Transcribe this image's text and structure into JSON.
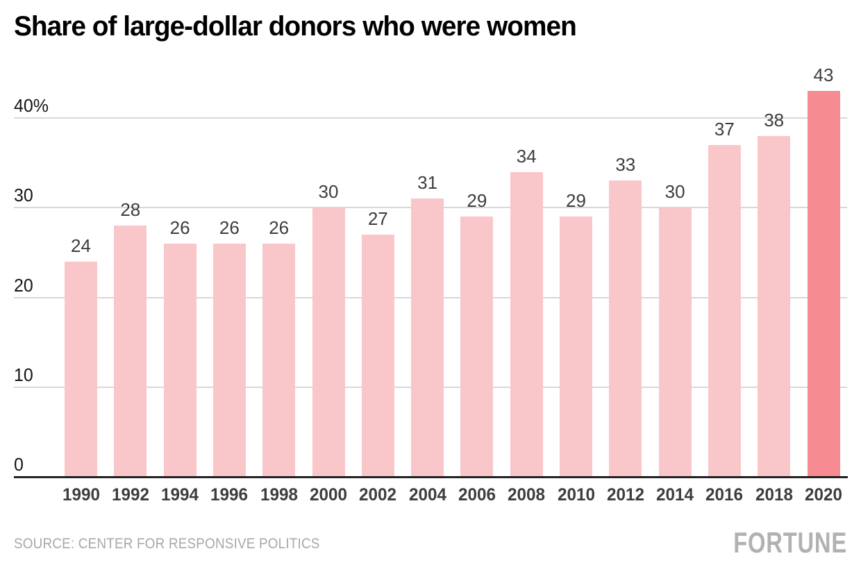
{
  "title": "Share of large-dollar donors who were women",
  "footer": {
    "source": "SOURCE: CENTER FOR RESPONSIVE POLITICS",
    "logo": "FORTUNE"
  },
  "colors": {
    "bar": "#f9c6ca",
    "bar_highlight": "#f68b91",
    "gridline": "#d8d8d8",
    "axis": "#222222",
    "value_label": "#3d3d3d",
    "year_label": "#3d3d3d",
    "ytick_label": "#141414",
    "source_text": "#a8a8a8",
    "logo_text": "#b1b1b1",
    "title_text": "#000000",
    "background": "#ffffff"
  },
  "chart_data": {
    "type": "bar",
    "title": "Share of large-dollar donors who were women",
    "categories": [
      "1990",
      "1992",
      "1994",
      "1996",
      "1998",
      "2000",
      "2002",
      "2004",
      "2006",
      "2008",
      "2010",
      "2012",
      "2014",
      "2016",
      "2018",
      "2020"
    ],
    "values": [
      24,
      28,
      26,
      26,
      26,
      30,
      27,
      31,
      29,
      34,
      29,
      33,
      30,
      37,
      38,
      43
    ],
    "highlight_index": 15,
    "value_labels_shown": true,
    "xlabel": "",
    "ylabel": "",
    "yticks": [
      0,
      10,
      20,
      30,
      40
    ],
    "ytick_labels": [
      "0",
      "10",
      "20",
      "30",
      "40%"
    ],
    "ylim": [
      0,
      44
    ],
    "grid": true,
    "legend": "none",
    "unit": "%"
  }
}
